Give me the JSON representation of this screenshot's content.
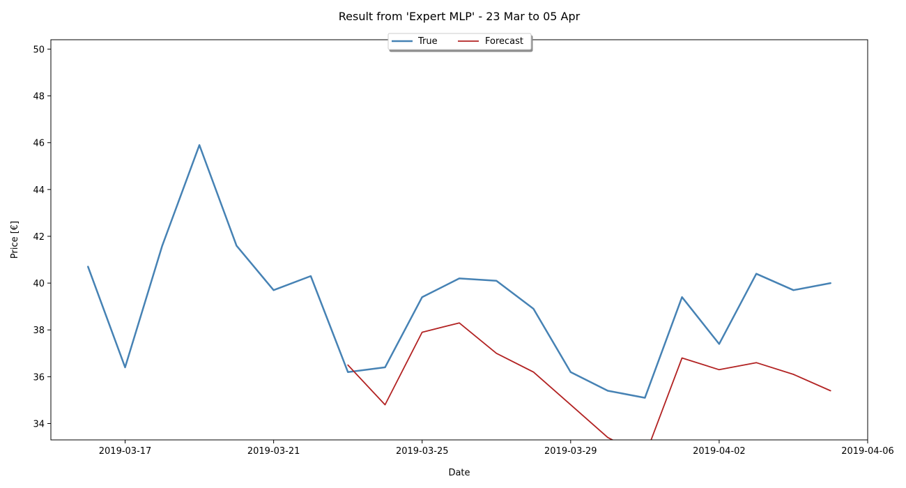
{
  "chart_data": {
    "type": "line",
    "title": "Result from 'Expert MLP' - 23 Mar to 05 Apr",
    "xlabel": "Date",
    "ylabel": "Price [€]",
    "ylim": [
      33.3,
      50.4
    ],
    "xlim": [
      "2019-03-15",
      "2019-04-06"
    ],
    "x_ticks": [
      "2019-03-17",
      "2019-03-21",
      "2019-03-25",
      "2019-03-29",
      "2019-04-02",
      "2019-04-06"
    ],
    "y_ticks": [
      34,
      36,
      38,
      40,
      42,
      44,
      46,
      48,
      50
    ],
    "grid": false,
    "legend": "top-center",
    "series": [
      {
        "name": "True",
        "color": "#4682b4",
        "x": [
          "2019-03-16",
          "2019-03-17",
          "2019-03-18",
          "2019-03-19",
          "2019-03-20",
          "2019-03-21",
          "2019-03-22",
          "2019-03-23",
          "2019-03-24",
          "2019-03-25",
          "2019-03-26",
          "2019-03-27",
          "2019-03-28",
          "2019-03-29",
          "2019-03-30",
          "2019-03-31",
          "2019-04-01",
          "2019-04-02",
          "2019-04-03",
          "2019-04-04",
          "2019-04-05"
        ],
        "values": [
          40.7,
          36.4,
          41.6,
          45.9,
          41.6,
          39.7,
          40.3,
          36.2,
          36.4,
          39.4,
          40.2,
          40.1,
          38.9,
          36.2,
          35.4,
          35.1,
          39.4,
          37.4,
          40.4,
          39.7,
          40.0
        ]
      },
      {
        "name": "Forecast",
        "color": "#b22222",
        "x": [
          "2019-03-23",
          "2019-03-24",
          "2019-03-25",
          "2019-03-26",
          "2019-03-27",
          "2019-03-28",
          "2019-03-29",
          "2019-03-30",
          "2019-03-31",
          "2019-04-01",
          "2019-04-02",
          "2019-04-03",
          "2019-04-04",
          "2019-04-05"
        ],
        "values": [
          36.5,
          34.8,
          37.9,
          38.3,
          37.0,
          36.2,
          34.8,
          33.4,
          32.6,
          36.8,
          36.3,
          36.6,
          36.1,
          35.4
        ]
      }
    ]
  }
}
